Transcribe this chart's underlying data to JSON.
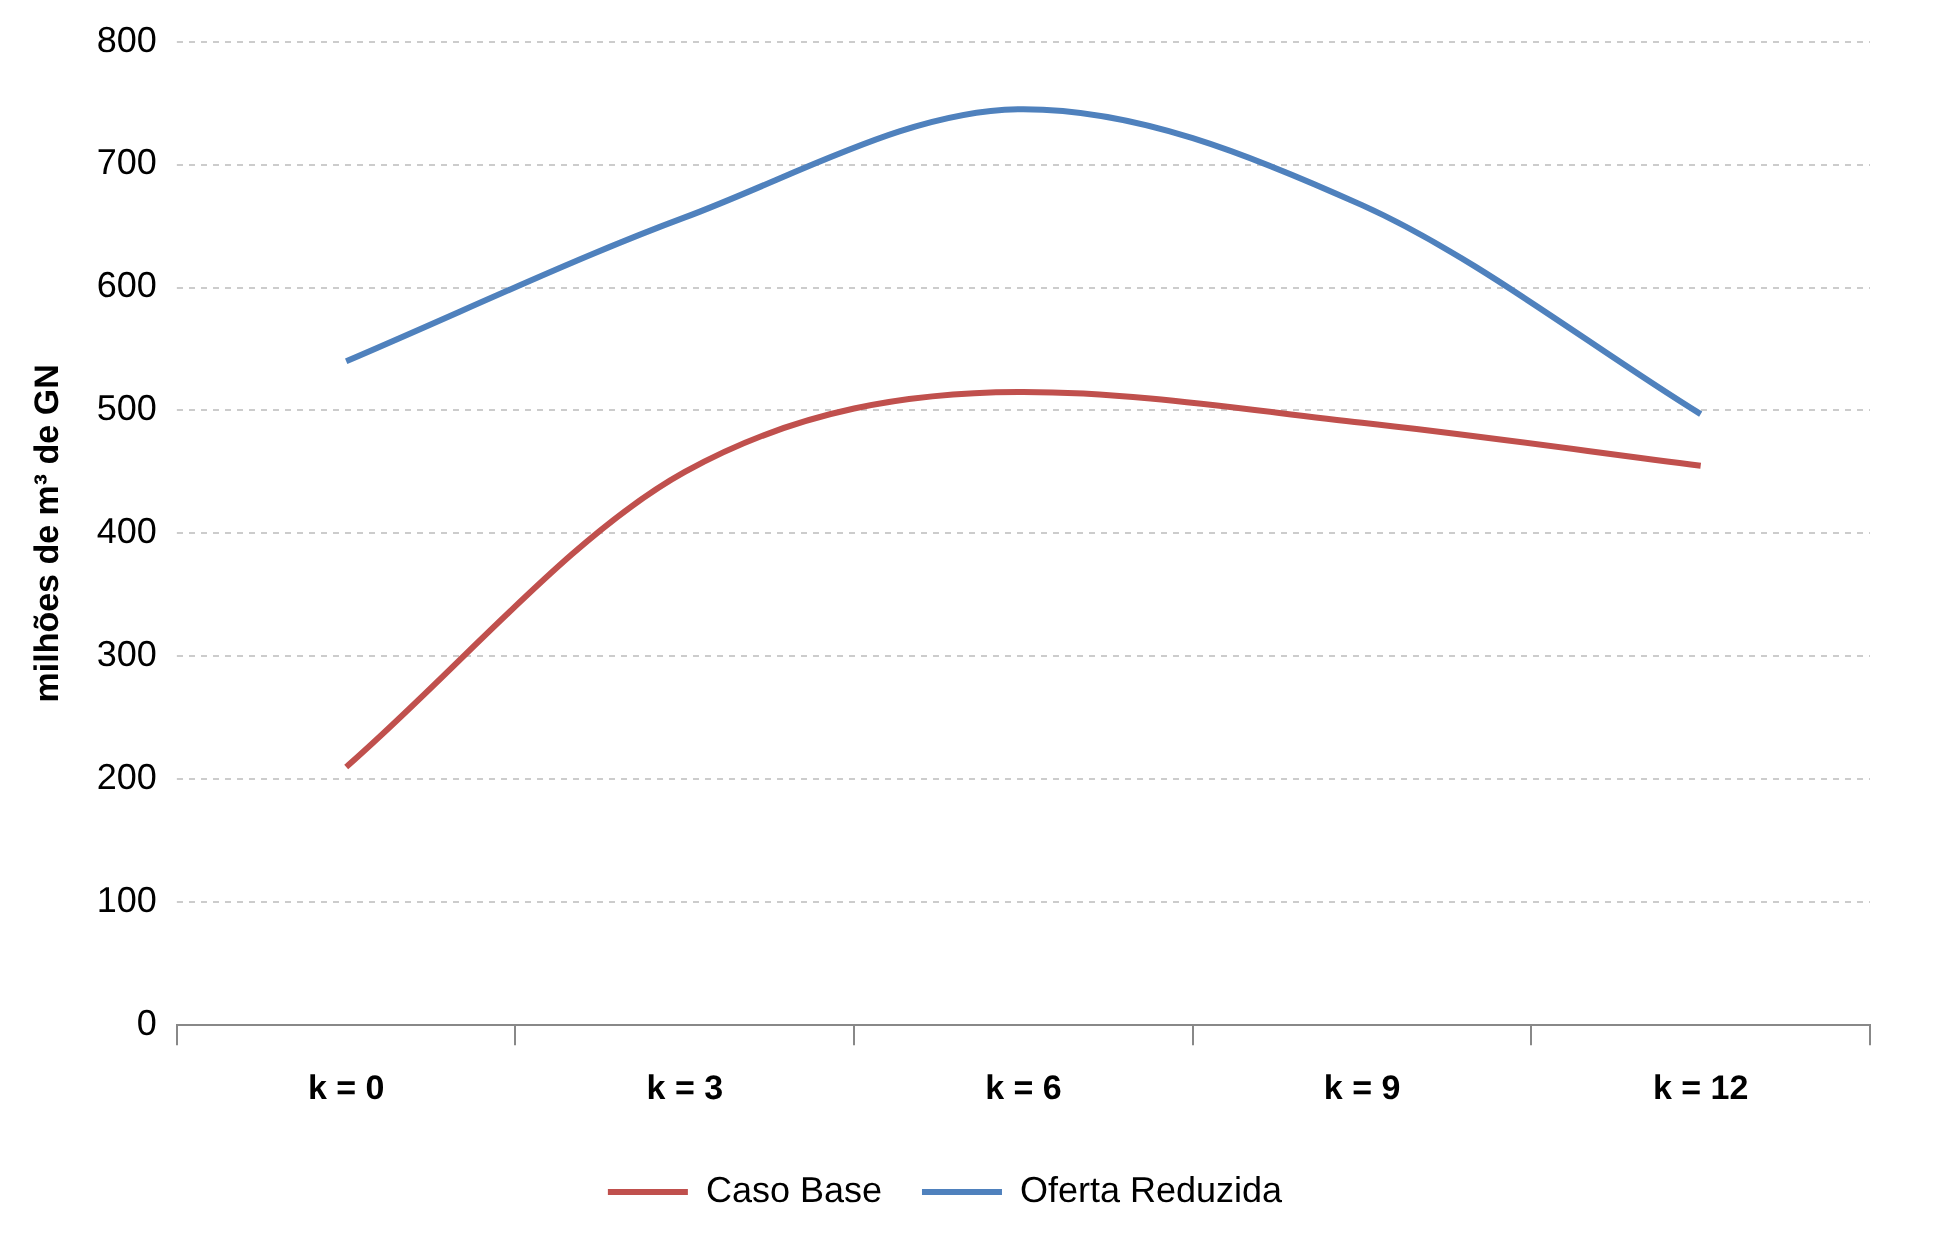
{
  "chart_data": {
    "type": "line",
    "ylabel": "milhões de m³ de GN",
    "categories": [
      "k = 0",
      "k = 3",
      "k = 6",
      "k = 9",
      "k = 12"
    ],
    "series": [
      {
        "name": "Caso Base",
        "color": "#c0504d",
        "values": [
          210,
          450,
          515,
          490,
          455
        ]
      },
      {
        "name": "Oferta Reduzida",
        "color": "#4f81bd",
        "values": [
          540,
          657,
          745,
          667,
          497
        ]
      }
    ],
    "ylim": [
      0,
      800
    ],
    "yticks": [
      0,
      100,
      200,
      300,
      400,
      500,
      600,
      700,
      800
    ],
    "grid": "y",
    "legend": "bottom",
    "marker": "none",
    "line_style": "solid"
  }
}
